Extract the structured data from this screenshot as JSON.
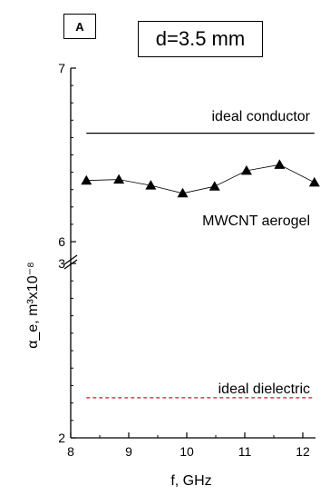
{
  "panel_label": "A",
  "chart_data": {
    "type": "line",
    "title": "d=3.5 mm",
    "xlabel": "f, GHz",
    "ylabel": "α_e, m³x10⁻⁸",
    "xlim": [
      8,
      12.3
    ],
    "xticks": [
      "8",
      "9",
      "10",
      "11",
      "12"
    ],
    "y_axis_broken": true,
    "y_upper_segment": {
      "range": [
        6,
        7
      ],
      "ticks": [
        "6",
        "7"
      ]
    },
    "y_lower_segment": {
      "range": [
        2,
        3
      ],
      "ticks": [
        "2",
        "3"
      ]
    },
    "series": [
      {
        "name": "MWCNT aerogel",
        "marker": "triangle",
        "color": "#000000",
        "x": [
          8.27,
          8.83,
          9.38,
          9.93,
          10.48,
          11.03,
          11.6,
          12.2
        ],
        "y": [
          6.43,
          6.435,
          6.405,
          6.365,
          6.4,
          6.48,
          6.51,
          6.42
        ]
      },
      {
        "name": "ideal conductor",
        "style": "solid",
        "color": "#000000",
        "x": [
          8.27,
          12.2
        ],
        "y": [
          6.67,
          6.67
        ]
      },
      {
        "name": "ideal dielectric",
        "style": "dashed",
        "color": "#e0102a",
        "x": [
          8.27,
          12.2
        ],
        "y": [
          2.23,
          2.23
        ]
      }
    ],
    "grid": false,
    "legend": "none (inline labels)"
  }
}
